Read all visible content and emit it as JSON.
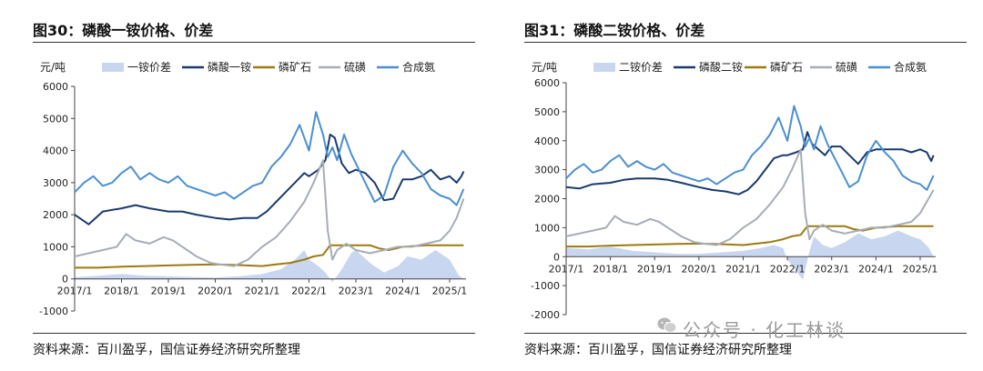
{
  "watermark": "公众号 · 化工林谈",
  "charts": [
    {
      "title": "图30：磷酸一铵价格、价差",
      "source": "资料来源：百川盈孚，国信证券经济研究所整理",
      "chart_data": {
        "type": "line",
        "ylabel": "元/吨",
        "ylim": [
          -1000,
          6000
        ],
        "yticks": [
          6000,
          5000,
          4000,
          3000,
          2000,
          1000,
          0,
          -1000
        ],
        "xticks": [
          "2017/1",
          "2018/1",
          "2019/1",
          "2020/1",
          "2021/1",
          "2022/1",
          "2023/1",
          "2024/1",
          "2025/1"
        ],
        "xlim": [
          2017.0,
          2025.35
        ],
        "series": [
          {
            "name": "一铵价差",
            "kind": "area",
            "color": "#c9d6f0",
            "x": [
              2017.0,
              2017.5,
              2018.0,
              2018.5,
              2019.0,
              2019.5,
              2020.0,
              2020.5,
              2021.0,
              2021.4,
              2021.7,
              2021.9,
              2022.0,
              2022.2,
              2022.35,
              2022.5,
              2022.7,
              2022.9,
              2023.0,
              2023.3,
              2023.6,
              2023.9,
              2024.1,
              2024.4,
              2024.7,
              2025.0,
              2025.2,
              2025.3
            ],
            "values": [
              50,
              100,
              150,
              100,
              80,
              60,
              40,
              80,
              150,
              300,
              600,
              900,
              600,
              400,
              200,
              -100,
              300,
              800,
              900,
              500,
              200,
              400,
              700,
              600,
              900,
              600,
              100,
              0
            ]
          },
          {
            "name": "磷酸一铵",
            "kind": "line",
            "color": "#1a3a6e",
            "x": [
              2017.0,
              2017.3,
              2017.6,
              2018.0,
              2018.3,
              2018.6,
              2019.0,
              2019.3,
              2019.6,
              2020.0,
              2020.3,
              2020.6,
              2020.9,
              2021.1,
              2021.3,
              2021.5,
              2021.7,
              2021.9,
              2022.0,
              2022.2,
              2022.35,
              2022.45,
              2022.55,
              2022.7,
              2022.85,
              2023.0,
              2023.2,
              2023.4,
              2023.6,
              2023.8,
              2024.0,
              2024.2,
              2024.4,
              2024.6,
              2024.8,
              2025.0,
              2025.15,
              2025.25,
              2025.3
            ],
            "values": [
              2000,
              1700,
              2100,
              2200,
              2300,
              2200,
              2100,
              2100,
              2000,
              1900,
              1850,
              1900,
              1900,
              2100,
              2400,
              2700,
              3000,
              3300,
              3200,
              3400,
              3700,
              4500,
              4400,
              3600,
              3300,
              3400,
              3300,
              3000,
              2450,
              2500,
              3100,
              3100,
              3200,
              3400,
              3100,
              3200,
              3000,
              3200,
              3350
            ]
          },
          {
            "name": "磷矿石",
            "kind": "line",
            "color": "#9c7a10",
            "x": [
              2017.0,
              2017.5,
              2018.0,
              2018.5,
              2019.0,
              2019.5,
              2020.0,
              2020.5,
              2021.0,
              2021.3,
              2021.6,
              2021.9,
              2022.1,
              2022.3,
              2022.45,
              2022.6,
              2022.8,
              2023.0,
              2023.3,
              2023.5,
              2023.7,
              2024.0,
              2024.5,
              2025.0,
              2025.3
            ],
            "values": [
              350,
              350,
              380,
              400,
              420,
              440,
              450,
              430,
              400,
              450,
              500,
              600,
              700,
              750,
              1050,
              1050,
              1050,
              1050,
              1050,
              950,
              900,
              1000,
              1050,
              1050,
              1050
            ]
          },
          {
            "name": "硫磺",
            "kind": "line",
            "color": "#a6adb6",
            "x": [
              2017.0,
              2017.3,
              2017.6,
              2017.9,
              2018.1,
              2018.3,
              2018.6,
              2018.9,
              2019.1,
              2019.3,
              2019.6,
              2019.9,
              2020.1,
              2020.4,
              2020.7,
              2021.0,
              2021.3,
              2021.6,
              2021.9,
              2022.1,
              2022.3,
              2022.4,
              2022.5,
              2022.6,
              2022.8,
              2023.0,
              2023.3,
              2023.6,
              2023.9,
              2024.2,
              2024.5,
              2024.8,
              2025.0,
              2025.15,
              2025.3
            ],
            "values": [
              700,
              800,
              900,
              1000,
              1400,
              1200,
              1100,
              1300,
              1200,
              1000,
              700,
              500,
              450,
              400,
              600,
              1000,
              1300,
              1800,
              2400,
              3000,
              3700,
              1500,
              600,
              900,
              1100,
              900,
              800,
              900,
              1000,
              1000,
              1100,
              1200,
              1500,
              1900,
              2500
            ]
          },
          {
            "name": "合成氨",
            "kind": "line",
            "color": "#4a8fd0",
            "x": [
              2017.0,
              2017.2,
              2017.4,
              2017.6,
              2017.8,
              2018.0,
              2018.2,
              2018.4,
              2018.6,
              2018.8,
              2019.0,
              2019.2,
              2019.4,
              2019.6,
              2019.8,
              2020.0,
              2020.2,
              2020.4,
              2020.6,
              2020.8,
              2021.0,
              2021.2,
              2021.4,
              2021.6,
              2021.8,
              2022.0,
              2022.15,
              2022.3,
              2022.4,
              2022.5,
              2022.6,
              2022.75,
              2022.9,
              2023.0,
              2023.2,
              2023.4,
              2023.6,
              2023.8,
              2024.0,
              2024.2,
              2024.4,
              2024.6,
              2024.8,
              2025.0,
              2025.15,
              2025.3
            ],
            "values": [
              2700,
              3000,
              3200,
              2900,
              3000,
              3300,
              3500,
              3100,
              3300,
              3100,
              3000,
              3200,
              2900,
              2800,
              2700,
              2600,
              2700,
              2500,
              2700,
              2900,
              3000,
              3500,
              3800,
              4200,
              4800,
              4000,
              5200,
              4500,
              3800,
              4100,
              3700,
              4500,
              3900,
              3600,
              3000,
              2400,
              2600,
              3500,
              4000,
              3600,
              3300,
              2800,
              2600,
              2500,
              2300,
              2800
            ]
          }
        ]
      }
    },
    {
      "title": "图31：磷酸二铵价格、价差",
      "source": "资料来源：百川盈孚，国信证券经济研究所整理",
      "chart_data": {
        "type": "line",
        "ylabel": "元/吨",
        "ylim": [
          -2000,
          6000
        ],
        "yticks": [
          6000,
          5000,
          4000,
          3000,
          2000,
          1000,
          0,
          -1000,
          -2000
        ],
        "xticks": [
          "2017/1",
          "2018/1",
          "2019/1",
          "2020/1",
          "2021/1",
          "2022/1",
          "2023/1",
          "2024/1",
          "2025/1"
        ],
        "xlim": [
          2017.0,
          2025.35
        ],
        "series": [
          {
            "name": "二铵价差",
            "kind": "area",
            "color": "#c9d6f0",
            "x": [
              2017.0,
              2017.5,
              2018.0,
              2018.5,
              2019.0,
              2019.5,
              2020.0,
              2020.5,
              2021.0,
              2021.4,
              2021.7,
              2021.9,
              2022.0,
              2022.2,
              2022.35,
              2022.5,
              2022.6,
              2022.8,
              2023.0,
              2023.3,
              2023.6,
              2023.9,
              2024.2,
              2024.5,
              2024.8,
              2025.0,
              2025.2,
              2025.3
            ],
            "values": [
              300,
              250,
              350,
              200,
              150,
              100,
              100,
              150,
              200,
              300,
              400,
              300,
              -100,
              -500,
              -800,
              200,
              700,
              400,
              300,
              500,
              800,
              600,
              700,
              900,
              700,
              600,
              300,
              0
            ]
          },
          {
            "name": "磷酸二铵",
            "kind": "line",
            "color": "#1a3a6e",
            "x": [
              2017.0,
              2017.3,
              2017.6,
              2018.0,
              2018.3,
              2018.6,
              2019.0,
              2019.3,
              2019.6,
              2020.0,
              2020.3,
              2020.6,
              2020.9,
              2021.1,
              2021.3,
              2021.5,
              2021.7,
              2021.9,
              2022.0,
              2022.2,
              2022.35,
              2022.45,
              2022.55,
              2022.7,
              2022.85,
              2023.0,
              2023.2,
              2023.4,
              2023.6,
              2023.8,
              2024.0,
              2024.2,
              2024.4,
              2024.6,
              2024.8,
              2025.0,
              2025.15,
              2025.25,
              2025.3
            ],
            "values": [
              2400,
              2350,
              2500,
              2550,
              2650,
              2700,
              2700,
              2650,
              2550,
              2400,
              2300,
              2250,
              2150,
              2300,
              2600,
              3000,
              3400,
              3500,
              3500,
              3600,
              3700,
              4300,
              3900,
              3700,
              3500,
              3800,
              3800,
              3500,
              3200,
              3600,
              3700,
              3700,
              3700,
              3700,
              3600,
              3700,
              3600,
              3300,
              3500
            ]
          },
          {
            "name": "磷矿石",
            "kind": "line",
            "color": "#9c7a10",
            "x": [
              2017.0,
              2017.5,
              2018.0,
              2018.5,
              2019.0,
              2019.5,
              2020.0,
              2020.5,
              2021.0,
              2021.3,
              2021.6,
              2021.9,
              2022.1,
              2022.3,
              2022.45,
              2022.6,
              2022.8,
              2023.0,
              2023.3,
              2023.5,
              2023.7,
              2024.0,
              2024.5,
              2025.0,
              2025.3
            ],
            "values": [
              350,
              350,
              380,
              400,
              420,
              440,
              450,
              430,
              400,
              450,
              500,
              600,
              700,
              750,
              1050,
              1050,
              1050,
              1050,
              1050,
              950,
              900,
              1000,
              1050,
              1050,
              1050
            ]
          },
          {
            "name": "硫磺",
            "kind": "line",
            "color": "#a6adb6",
            "x": [
              2017.0,
              2017.3,
              2017.6,
              2017.9,
              2018.1,
              2018.3,
              2018.6,
              2018.9,
              2019.1,
              2019.3,
              2019.6,
              2019.9,
              2020.1,
              2020.4,
              2020.7,
              2021.0,
              2021.3,
              2021.6,
              2021.9,
              2022.1,
              2022.3,
              2022.4,
              2022.5,
              2022.6,
              2022.8,
              2023.0,
              2023.3,
              2023.6,
              2023.9,
              2024.2,
              2024.5,
              2024.8,
              2025.0,
              2025.15,
              2025.3
            ],
            "values": [
              700,
              800,
              900,
              1000,
              1400,
              1200,
              1100,
              1300,
              1200,
              1000,
              700,
              500,
              450,
              400,
              600,
              1000,
              1300,
              1800,
              2400,
              3000,
              3700,
              1500,
              600,
              900,
              1100,
              900,
              800,
              900,
              1000,
              1000,
              1100,
              1200,
              1500,
              1900,
              2300
            ]
          },
          {
            "name": "合成氨",
            "kind": "line",
            "color": "#4a8fd0",
            "x": [
              2017.0,
              2017.2,
              2017.4,
              2017.6,
              2017.8,
              2018.0,
              2018.2,
              2018.4,
              2018.6,
              2018.8,
              2019.0,
              2019.2,
              2019.4,
              2019.6,
              2019.8,
              2020.0,
              2020.2,
              2020.4,
              2020.6,
              2020.8,
              2021.0,
              2021.2,
              2021.4,
              2021.6,
              2021.8,
              2022.0,
              2022.15,
              2022.3,
              2022.4,
              2022.5,
              2022.6,
              2022.75,
              2022.9,
              2023.0,
              2023.2,
              2023.4,
              2023.6,
              2023.8,
              2024.0,
              2024.2,
              2024.4,
              2024.6,
              2024.8,
              2025.0,
              2025.15,
              2025.3
            ],
            "values": [
              2700,
              3000,
              3200,
              2900,
              3000,
              3300,
              3500,
              3100,
              3300,
              3100,
              3000,
              3200,
              2900,
              2800,
              2700,
              2600,
              2700,
              2500,
              2700,
              2900,
              3000,
              3500,
              3800,
              4200,
              4800,
              4000,
              5200,
              4500,
              3800,
              4100,
              3700,
              4500,
              3900,
              3600,
              3000,
              2400,
              2600,
              3500,
              4000,
              3600,
              3300,
              2800,
              2600,
              2500,
              2300,
              2800
            ]
          }
        ]
      }
    }
  ]
}
